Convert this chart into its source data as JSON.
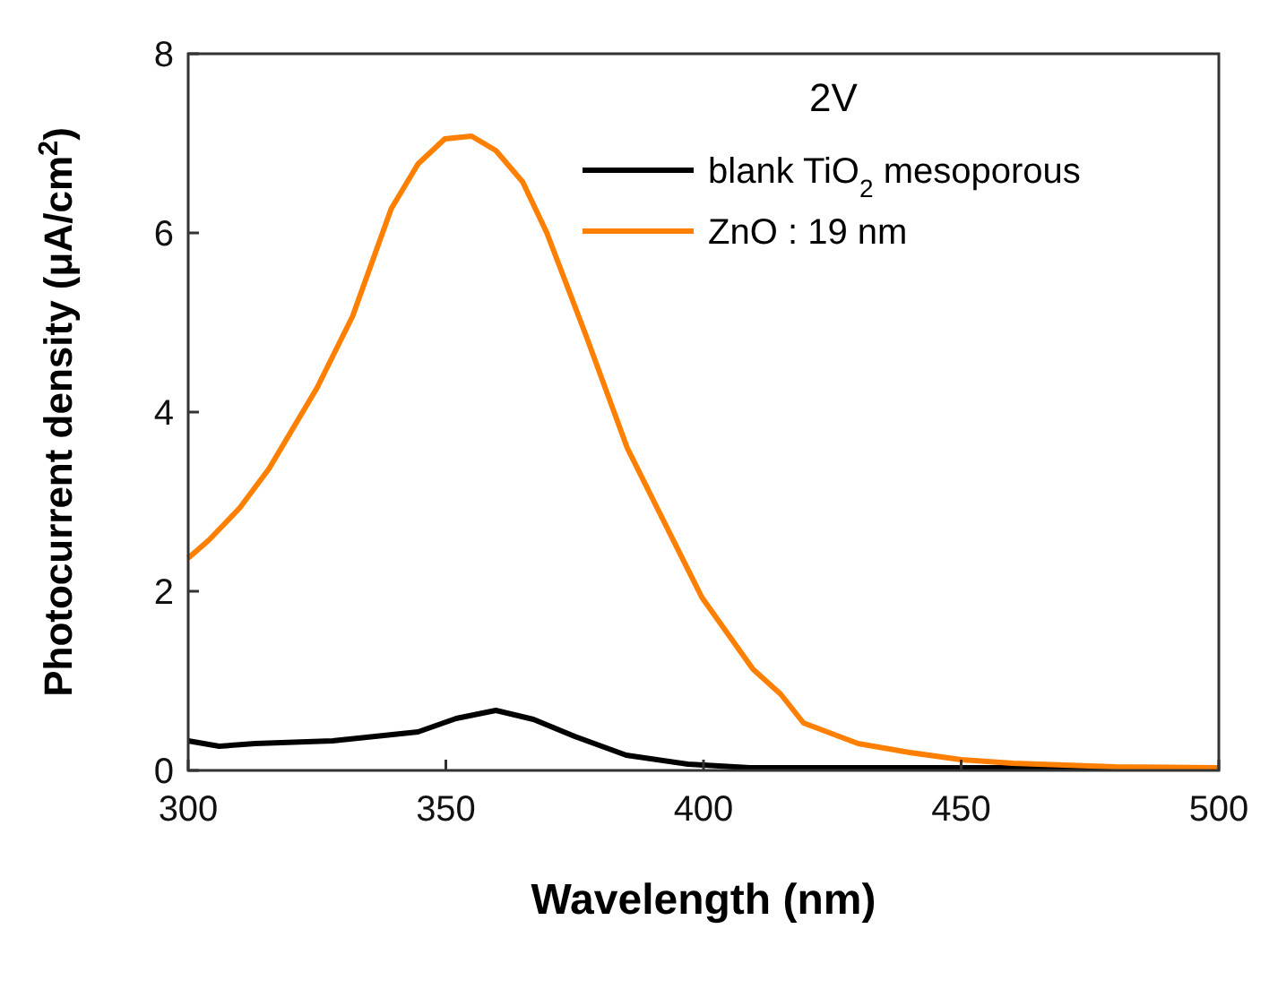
{
  "chart_data": {
    "type": "line",
    "xlabel": "Wavelength (nm)",
    "ylabel": "Photocurrent density (μA/cm$^{2}$)",
    "legend_title": "2V",
    "legend": "top right",
    "grid": false,
    "marker": "none",
    "line_style": "solid",
    "xlim": [
      300,
      500
    ],
    "xticks": [
      300,
      350,
      400,
      450,
      500
    ],
    "ylim": [
      0,
      8
    ],
    "yticks": [
      0,
      2,
      4,
      6,
      8
    ],
    "series": [
      {
        "name": "blank TiO$_{2}$ mesoporous",
        "color": "#000000",
        "x": [
          300,
          306,
          313,
          328,
          344.6,
          352,
          359.7,
          367,
          375,
          385,
          397,
          409,
          430,
          460,
          500
        ],
        "values": [
          0.33,
          0.27,
          0.3,
          0.33,
          0.43,
          0.58,
          0.67,
          0.57,
          0.38,
          0.17,
          0.07,
          0.03,
          0.03,
          0.03,
          0.03
        ]
      },
      {
        "name": "ZnO : 19 nm",
        "color": "#ff8000",
        "x": [
          300,
          304,
          310,
          315.7,
          325,
          331.9,
          339.4,
          344.6,
          349.8,
          355,
          359.7,
          364.9,
          369.6,
          377.1,
          385.2,
          391,
          399.7,
          409.6,
          415,
          419.4,
          430,
          440,
          450,
          460,
          480,
          500
        ],
        "values": [
          2.37,
          2.57,
          2.93,
          3.37,
          4.27,
          5.07,
          6.27,
          6.77,
          7.05,
          7.08,
          6.92,
          6.57,
          6.0,
          4.87,
          3.6,
          2.93,
          1.93,
          1.13,
          0.85,
          0.53,
          0.3,
          0.2,
          0.12,
          0.08,
          0.04,
          0.03
        ]
      }
    ]
  }
}
